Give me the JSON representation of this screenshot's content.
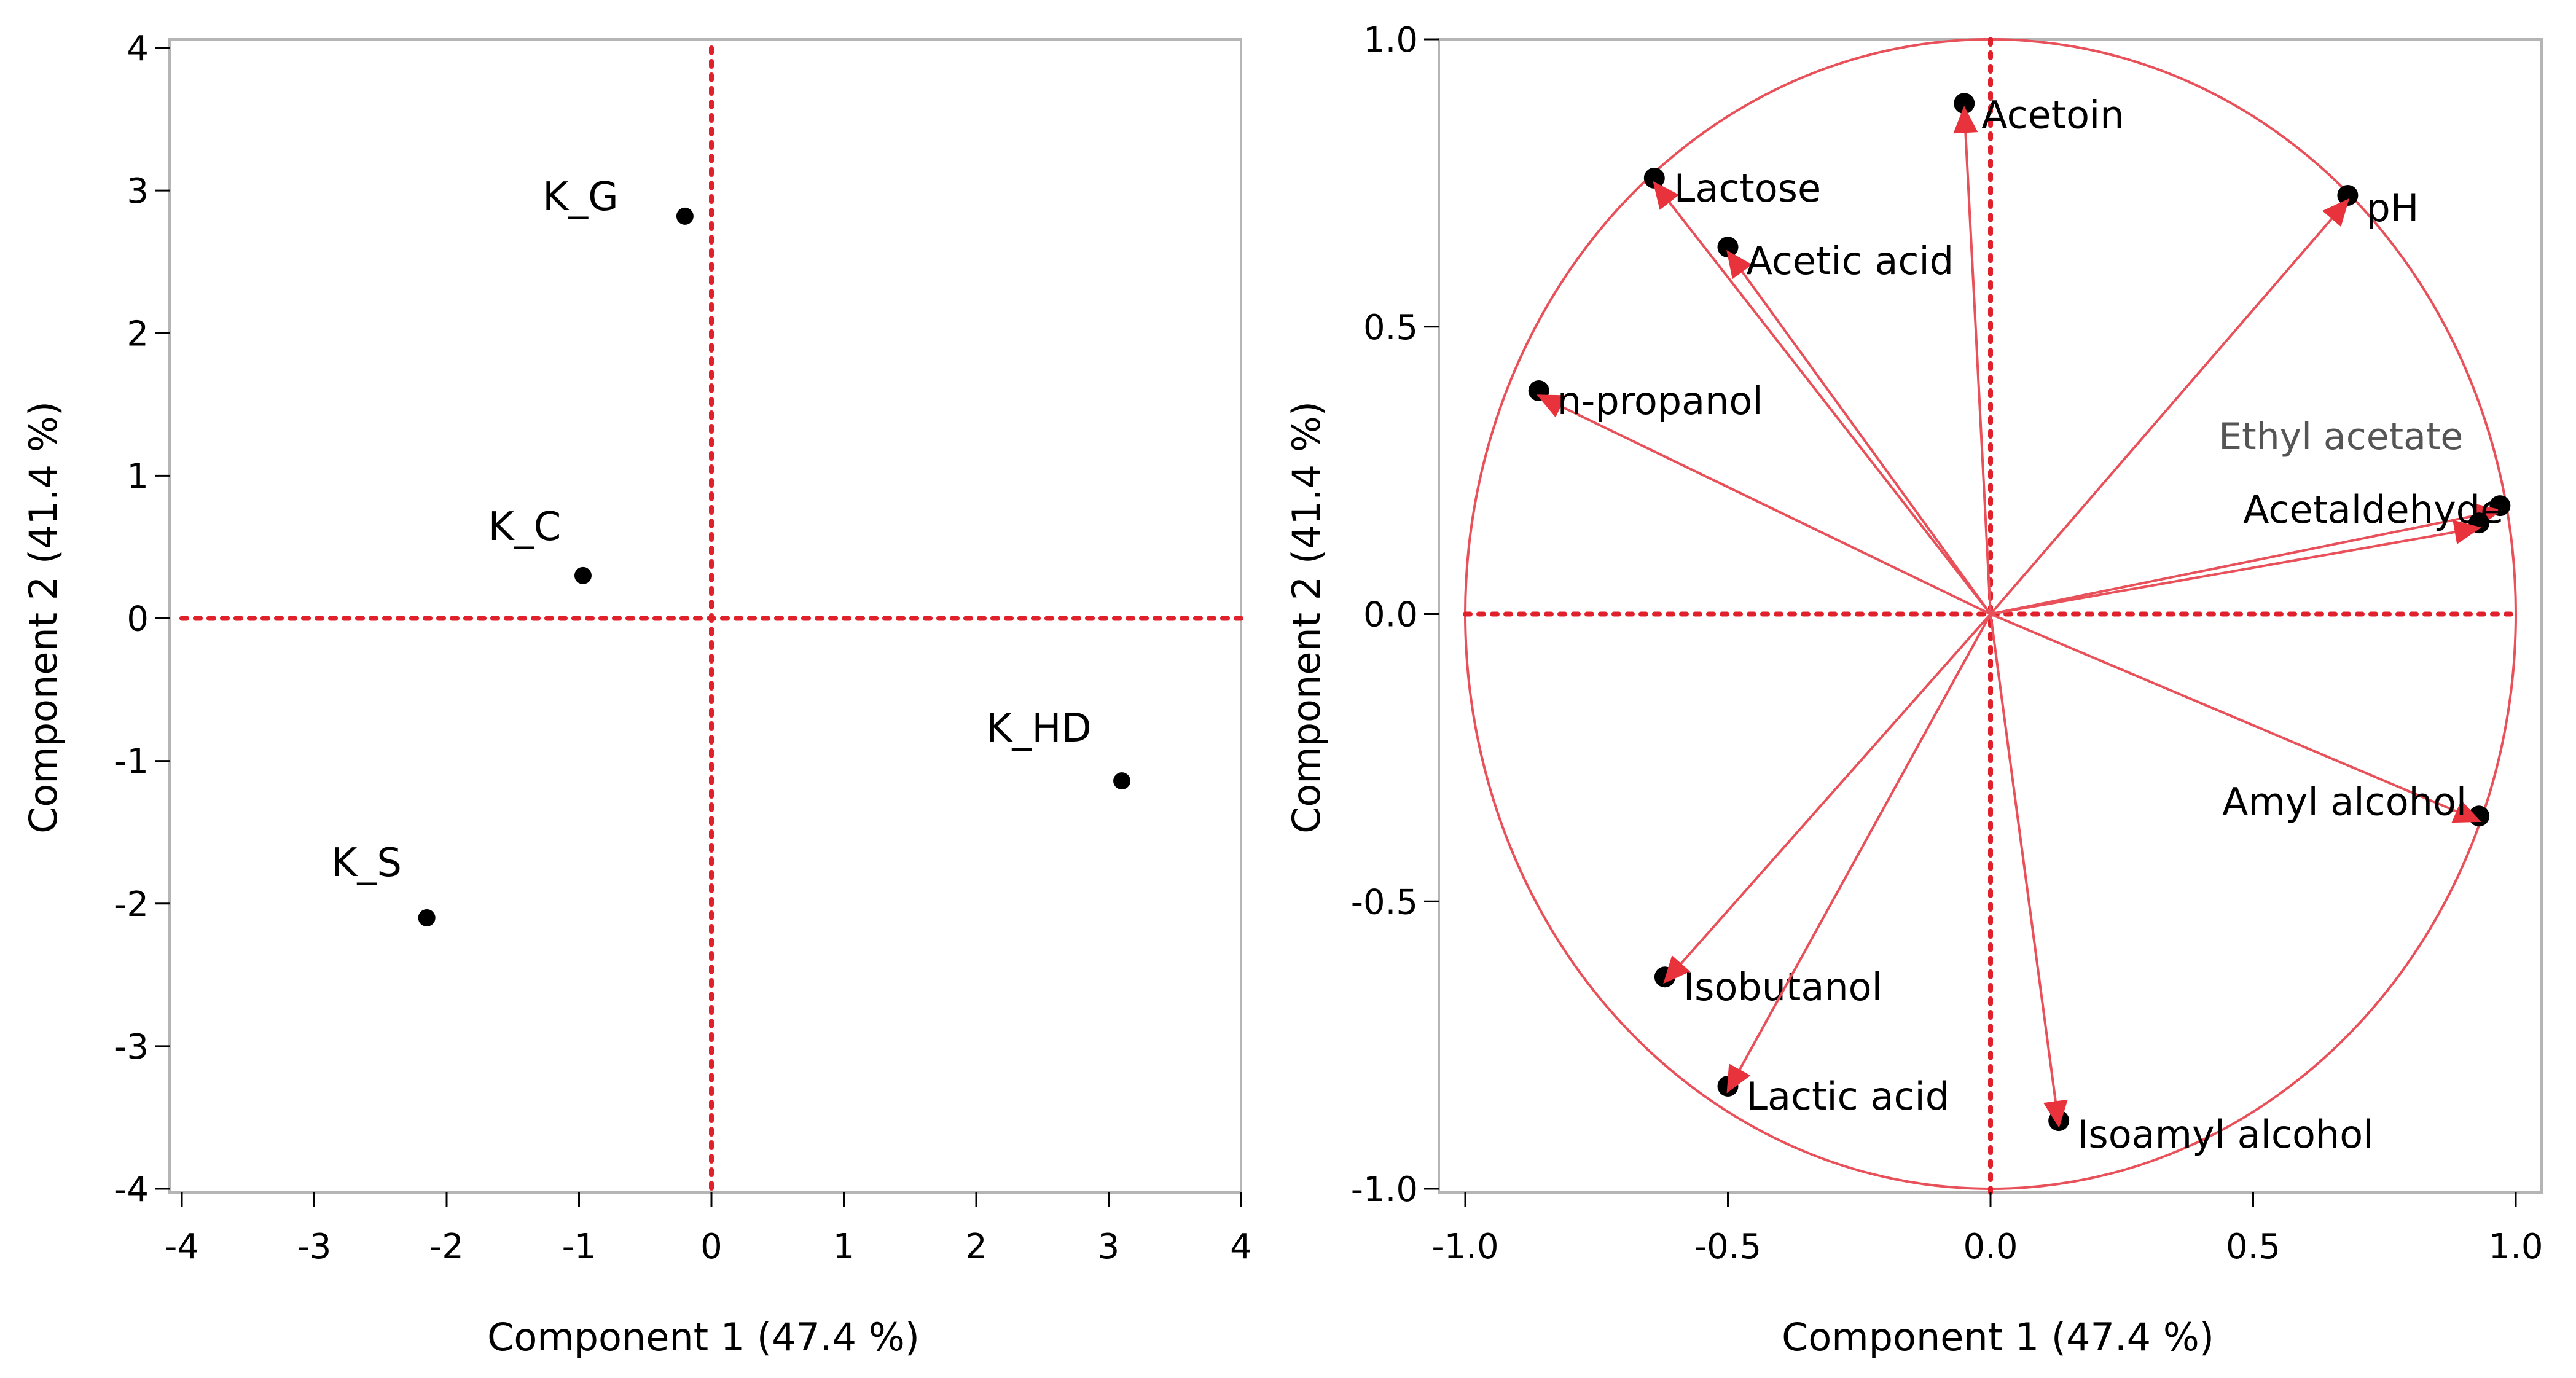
{
  "charts": [
    {
      "type": "scatter",
      "xlabel": "Component 1 (47.4 %)",
      "ylabel": "Component 2 (41.4 %)",
      "xlim": [
        -4,
        4
      ],
      "ylim": [
        -4,
        4
      ],
      "xticks": [
        "-4",
        "-3",
        "-2",
        "-1",
        "0",
        "1",
        "2",
        "3",
        "4"
      ],
      "yticks": [
        "-4",
        "-3",
        "-2",
        "-1",
        "0",
        "1",
        "2",
        "3",
        "4"
      ],
      "grid": false,
      "points": [
        {
          "label": "K_G",
          "x": -0.2,
          "y": 2.82
        },
        {
          "label": "K_C",
          "x": -0.97,
          "y": 0.3
        },
        {
          "label": "K_HD",
          "x": 3.1,
          "y": -1.14
        },
        {
          "label": "K_S",
          "x": -2.15,
          "y": -2.1
        }
      ],
      "colors": {
        "points": "#000000",
        "reference_lines": "#e0202a"
      }
    },
    {
      "type": "scatter",
      "xlabel": "Component 1 (47.4 %)",
      "ylabel": "Component 2 (41.4 %)",
      "xlim": [
        -1,
        1
      ],
      "ylim": [
        -1,
        1
      ],
      "xticks": [
        "-1.0",
        "-0.5",
        "0.0",
        "0.5",
        "1.0"
      ],
      "yticks": [
        "-1.0",
        "-0.5",
        "0.0",
        "0.5",
        "1.0"
      ],
      "grid": false,
      "unit_circle": true,
      "vectors": [
        {
          "label": "Acetoin",
          "x": -0.05,
          "y": 0.88
        },
        {
          "label": "Lactose",
          "x": -0.64,
          "y": 0.75
        },
        {
          "label": "pH",
          "x": 0.68,
          "y": 0.72
        },
        {
          "label": "Acetic acid",
          "x": -0.5,
          "y": 0.63
        },
        {
          "label": "n-propanol",
          "x": -0.86,
          "y": 0.38
        },
        {
          "label": "Ethyl acetate",
          "x": 0.97,
          "y": 0.18
        },
        {
          "label": "Acetaldehyde",
          "x": 0.93,
          "y": 0.15
        },
        {
          "label": "Amyl alcohol",
          "x": 0.93,
          "y": -0.36
        },
        {
          "label": "Isobutanol",
          "x": -0.62,
          "y": -0.64
        },
        {
          "label": "Lactic acid",
          "x": -0.5,
          "y": -0.83
        },
        {
          "label": "Isoamyl alcohol",
          "x": 0.13,
          "y": -0.89
        }
      ],
      "colors": {
        "vectors": "#e8505a",
        "markers": "#000000",
        "reference_lines": "#e0202a"
      }
    }
  ]
}
